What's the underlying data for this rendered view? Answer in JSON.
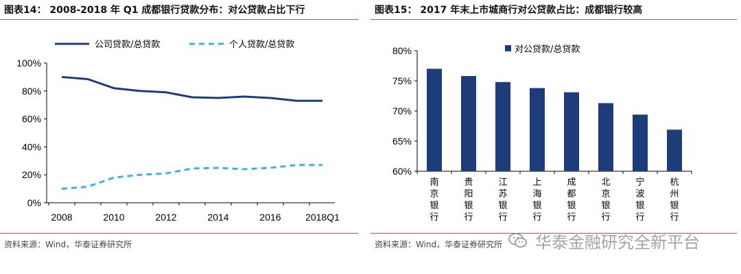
{
  "left": {
    "title": "图表14： 2008-2018 年 Q1 成都银行贷款分布：对公贷款占比下行",
    "source": "资料来源：Wind，华泰证券研究所"
  },
  "right": {
    "title": "图表15： 2017 年末上市城商行对公贷款占比：成都银行较高",
    "source": "资料来源：Wind，华泰证券研究所"
  },
  "watermark": {
    "text": "华泰金融研究全新平台",
    "icon": "wechat-icon"
  },
  "chart_data": [
    {
      "type": "line",
      "x": [
        "2008",
        "2009",
        "2010",
        "2011",
        "2012",
        "2013",
        "2014",
        "2015",
        "2016",
        "2017",
        "2018Q1"
      ],
      "x_ticks": [
        "2008",
        "2010",
        "2012",
        "2014",
        "2016",
        "2018Q1"
      ],
      "series": [
        {
          "name": "公司贷款/总贷款",
          "values": [
            90,
            88.5,
            82,
            80,
            79,
            75.5,
            75,
            76,
            75,
            73,
            73
          ],
          "color": "#1f3c7a",
          "style": "solid"
        },
        {
          "name": "个人贷款/总贷款",
          "values": [
            10,
            11.5,
            18,
            20,
            21,
            24.5,
            25,
            24,
            25,
            27,
            27
          ],
          "color": "#3ab0e8",
          "style": "dashed"
        }
      ],
      "ylim": [
        0,
        100
      ],
      "y_ticks": [
        0,
        20,
        40,
        60,
        80,
        100
      ],
      "y_tick_labels": [
        "0%",
        "20%",
        "40%",
        "60%",
        "80%",
        "100%"
      ],
      "legend": "top",
      "grid": false
    },
    {
      "type": "bar",
      "categories": [
        "南京银行",
        "贵阳银行",
        "江苏银行",
        "上海银行",
        "成都银行",
        "北京银行",
        "宁波银行",
        "杭州银行"
      ],
      "series": [
        {
          "name": "对公贷款/总贷款",
          "values": [
            77.0,
            75.8,
            74.8,
            73.8,
            73.1,
            71.3,
            69.4,
            66.9
          ],
          "color": "#1f3c7a"
        }
      ],
      "ylim": [
        60,
        80
      ],
      "y_ticks": [
        60,
        65,
        70,
        75,
        80
      ],
      "y_tick_labels": [
        "60%",
        "65%",
        "70%",
        "75%",
        "80%"
      ],
      "legend": "top",
      "grid": false
    }
  ]
}
